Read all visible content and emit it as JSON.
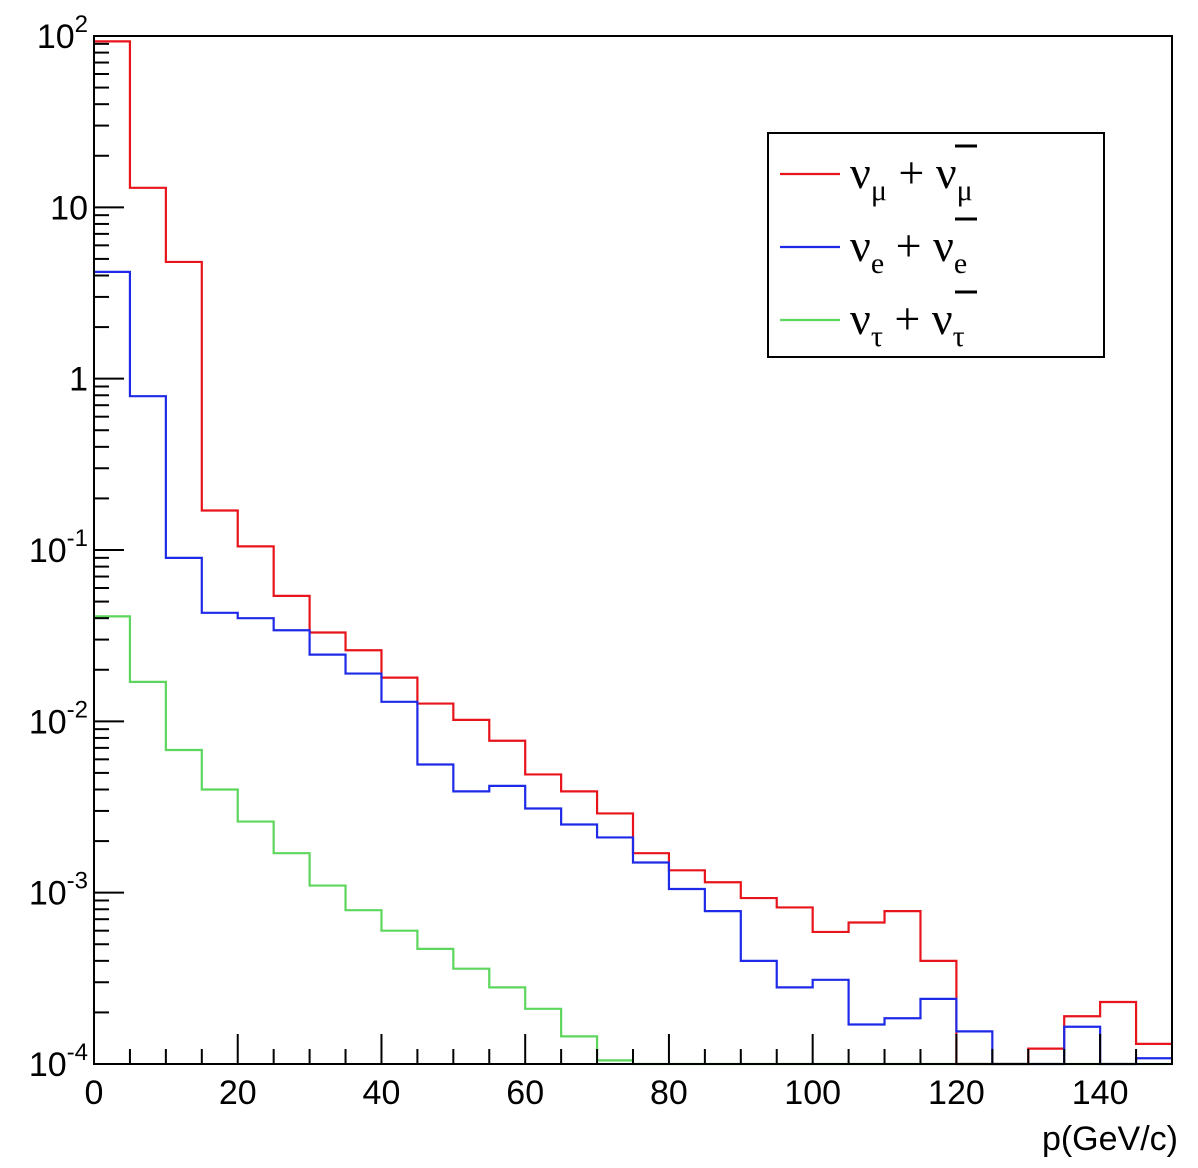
{
  "chart_data": {
    "type": "line",
    "title": "",
    "xlabel": "p(GeV/c)",
    "ylabel": "",
    "xlim": [
      0,
      150
    ],
    "ylim": [
      0.0001,
      100
    ],
    "yscale": "log",
    "grid": false,
    "legend_position": "top-right",
    "bin_width": 5,
    "x_ticks": [
      "0",
      "20",
      "40",
      "60",
      "80",
      "100",
      "120",
      "140"
    ],
    "y_ticks": [
      {
        "base": "10",
        "exp": "2"
      },
      {
        "base": "10",
        "exp": ""
      },
      {
        "base": "1",
        "exp": ""
      },
      {
        "base": "10",
        "exp": "-1"
      },
      {
        "base": "10",
        "exp": "-2"
      },
      {
        "base": "10",
        "exp": "-3"
      },
      {
        "base": "10",
        "exp": "-4"
      }
    ],
    "series": [
      {
        "name": "ν_μ + ν̄_μ",
        "label_main": "ν",
        "label_sub": "μ",
        "label_plus": "+",
        "color": "#e8141c",
        "values": [
          93,
          13,
          4.8,
          0.17,
          0.105,
          0.054,
          0.033,
          0.026,
          0.018,
          0.0127,
          0.0102,
          0.0077,
          0.0049,
          0.0039,
          0.0029,
          0.0017,
          0.00135,
          0.00115,
          0.00093,
          0.00082,
          0.00059,
          0.00067,
          0.00078,
          0.0004,
          0.0,
          0.0,
          0.000123,
          0.00019,
          0.00023,
          0.000131
        ]
      },
      {
        "name": "ν_e + ν̄_e",
        "label_main": "ν",
        "label_sub": "e",
        "label_plus": "+",
        "color": "#1f2ae8",
        "values": [
          4.2,
          0.79,
          0.09,
          0.043,
          0.04,
          0.034,
          0.0245,
          0.019,
          0.013,
          0.0056,
          0.0039,
          0.0042,
          0.0031,
          0.0025,
          0.0021,
          0.0015,
          0.00105,
          0.00078,
          0.0004,
          0.00028,
          0.00031,
          0.00017,
          0.000185,
          0.00024,
          0.000155,
          0.0,
          0.0,
          0.000165,
          0.0,
          0.000108
        ]
      },
      {
        "name": "ν_τ + ν̄_τ",
        "label_main": "ν",
        "label_sub": "τ",
        "label_plus": "+",
        "color": "#5cd65c",
        "values": [
          0.041,
          0.017,
          0.0068,
          0.004,
          0.0026,
          0.0017,
          0.0011,
          0.00079,
          0.0006,
          0.00047,
          0.00036,
          0.00028,
          0.00021,
          0.000145,
          0.000105,
          0.0,
          0.0,
          0.0,
          0.0,
          0.0,
          0.0,
          0.0,
          0.0,
          0.0,
          0.0,
          0.0,
          0.0,
          0.0,
          0.0,
          0.0
        ]
      }
    ]
  }
}
